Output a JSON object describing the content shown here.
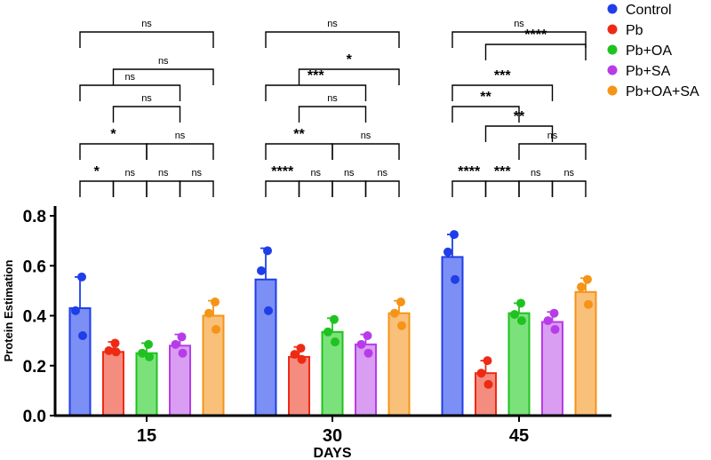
{
  "chart_data": {
    "type": "bar",
    "title": "",
    "xlabel": "DAYS",
    "ylabel": "Protein Estimation",
    "ylim": [
      0,
      0.8
    ],
    "yticks": [
      "0.0",
      "0.2",
      "0.4",
      "0.6",
      "0.8"
    ],
    "categories": [
      "15",
      "30",
      "45"
    ],
    "legend_position": "top-right",
    "series": [
      {
        "name": "Control",
        "color": "#1f3ee8",
        "fill": "#7b8ff5",
        "values": [
          0.43,
          0.545,
          0.635
        ],
        "errors": [
          0.125,
          0.125,
          0.09
        ],
        "points": [
          [
            0.555,
            0.42,
            0.32
          ],
          [
            0.66,
            0.58,
            0.42
          ],
          [
            0.725,
            0.655,
            0.545
          ]
        ]
      },
      {
        "name": "Pb",
        "color": "#ee2a14",
        "fill": "#f58c80",
        "values": [
          0.255,
          0.235,
          0.17
        ],
        "errors": [
          0.04,
          0.04,
          0.05
        ],
        "points": [
          [
            0.29,
            0.26,
            0.255
          ],
          [
            0.27,
            0.245,
            0.225
          ],
          [
            0.22,
            0.17,
            0.125
          ]
        ]
      },
      {
        "name": "Pb+OA",
        "color": "#1fc21f",
        "fill": "#7be27b",
        "values": [
          0.25,
          0.335,
          0.41
        ],
        "errors": [
          0.04,
          0.055,
          0.04
        ],
        "points": [
          [
            0.285,
            0.25,
            0.235
          ],
          [
            0.385,
            0.335,
            0.295
          ],
          [
            0.45,
            0.405,
            0.38
          ]
        ]
      },
      {
        "name": "Pb+SA",
        "color": "#b73ce8",
        "fill": "#d99df2",
        "values": [
          0.28,
          0.285,
          0.375
        ],
        "errors": [
          0.045,
          0.04,
          0.04
        ],
        "points": [
          [
            0.315,
            0.285,
            0.25
          ],
          [
            0.32,
            0.285,
            0.25
          ],
          [
            0.41,
            0.38,
            0.345
          ]
        ]
      },
      {
        "name": "Pb+OA+SA",
        "color": "#f59417",
        "fill": "#f9c07a",
        "values": [
          0.4,
          0.41,
          0.495
        ],
        "errors": [
          0.06,
          0.05,
          0.055
        ],
        "points": [
          [
            0.455,
            0.41,
            0.345
          ],
          [
            0.455,
            0.41,
            0.36
          ],
          [
            0.545,
            0.515,
            0.445
          ]
        ]
      }
    ],
    "comparisons": [
      {
        "day": 0,
        "from": 0,
        "to": 1,
        "label": "*"
      },
      {
        "day": 0,
        "from": 1,
        "to": 2,
        "label": "ns"
      },
      {
        "day": 0,
        "from": 2,
        "to": 3,
        "label": "ns"
      },
      {
        "day": 0,
        "from": 3,
        "to": 4,
        "label": "ns"
      },
      {
        "day": 0,
        "from": 0,
        "to": 2,
        "label": "*"
      },
      {
        "day": 0,
        "from": 2,
        "to": 4,
        "label": "ns"
      },
      {
        "day": 0,
        "from": 1,
        "to": 3,
        "label": "ns"
      },
      {
        "day": 0,
        "from": 0,
        "to": 3,
        "label": "ns"
      },
      {
        "day": 0,
        "from": 1,
        "to": 4,
        "label": "ns"
      },
      {
        "day": 0,
        "from": 0,
        "to": 4,
        "label": "ns"
      },
      {
        "day": 1,
        "from": 0,
        "to": 1,
        "label": "****"
      },
      {
        "day": 1,
        "from": 1,
        "to": 2,
        "label": "ns"
      },
      {
        "day": 1,
        "from": 2,
        "to": 3,
        "label": "ns"
      },
      {
        "day": 1,
        "from": 3,
        "to": 4,
        "label": "ns"
      },
      {
        "day": 1,
        "from": 0,
        "to": 2,
        "label": "**"
      },
      {
        "day": 1,
        "from": 2,
        "to": 4,
        "label": "ns"
      },
      {
        "day": 1,
        "from": 1,
        "to": 3,
        "label": "ns"
      },
      {
        "day": 1,
        "from": 0,
        "to": 3,
        "label": "***"
      },
      {
        "day": 1,
        "from": 1,
        "to": 4,
        "label": "*"
      },
      {
        "day": 1,
        "from": 0,
        "to": 4,
        "label": "ns"
      },
      {
        "day": 2,
        "from": 0,
        "to": 1,
        "label": "****"
      },
      {
        "day": 2,
        "from": 1,
        "to": 2,
        "label": "***"
      },
      {
        "day": 2,
        "from": 2,
        "to": 3,
        "label": "ns"
      },
      {
        "day": 2,
        "from": 3,
        "to": 4,
        "label": "ns"
      },
      {
        "day": 2,
        "from": 1,
        "to": 3,
        "label": "**"
      },
      {
        "day": 2,
        "from": 0,
        "to": 2,
        "label": "**"
      },
      {
        "day": 2,
        "from": 2,
        "to": 4,
        "label": "ns"
      },
      {
        "day": 2,
        "from": 1,
        "to": 4,
        "label": "****"
      },
      {
        "day": 2,
        "from": 0,
        "to": 3,
        "label": "***"
      },
      {
        "day": 2,
        "from": 0,
        "to": 4,
        "label": "ns"
      }
    ]
  }
}
